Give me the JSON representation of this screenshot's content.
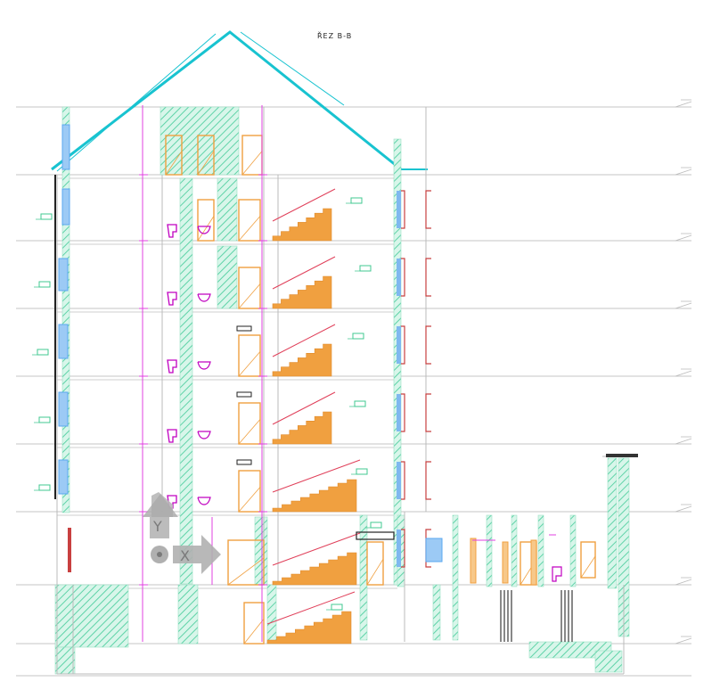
{
  "drawing": {
    "title": "ŘEZ B-B",
    "type": "architectural-section",
    "ucs_axis_labels": {
      "x": "X",
      "y": "Y"
    },
    "colors": {
      "background": "#ffffff",
      "floor_line": "#bdbdbd",
      "hatch": "#5fd3a8",
      "roof": "#18c3d0",
      "door": "#f0a040",
      "stair": "#f0a040",
      "stair_rail": "#e0405a",
      "dimension": "#e040e0",
      "window": "#5aa8f0",
      "label_box": "#40c890",
      "ucs_icon": "#b0b0b0"
    },
    "icons": [
      "ucs-icon",
      "door-symbol",
      "window-symbol",
      "toilet-symbol",
      "sink-symbol",
      "stair-symbol"
    ]
  }
}
